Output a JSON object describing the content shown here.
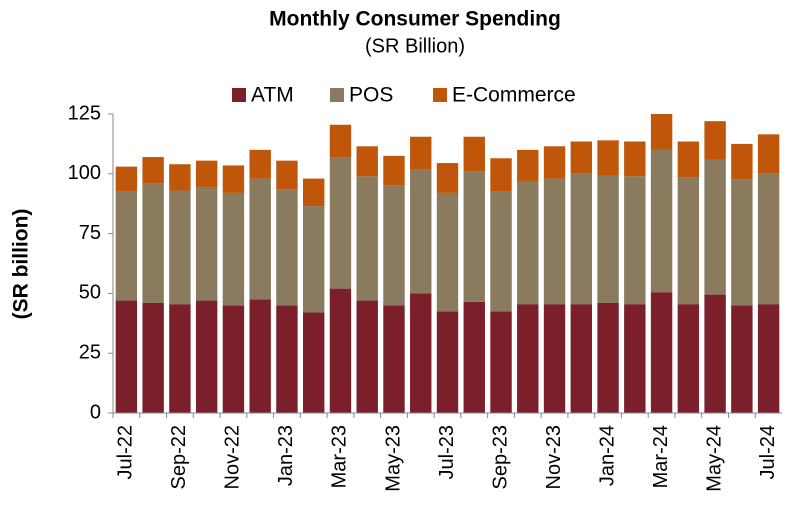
{
  "chart_data": {
    "type": "stacked_bar",
    "title": "Monthly Consumer Spending",
    "subtitle": "(SR Billion)",
    "y_label": "(SR billion)",
    "categories": [
      "Jul-22",
      null,
      "Sep-22",
      null,
      "Nov-22",
      null,
      "Jan-23",
      null,
      "Mar-23",
      null,
      "May-23",
      null,
      "Jul-23",
      null,
      "Sep-23",
      null,
      "Nov-23",
      null,
      "Jan-24",
      null,
      "Mar-24",
      null,
      "May-24",
      null,
      "Jul-24"
    ],
    "series": [
      {
        "name": "ATM",
        "color": "#7b1f2a",
        "values": [
          47,
          46,
          45.5,
          47,
          45,
          47.5,
          45,
          42,
          52,
          47,
          45,
          50,
          42.5,
          46.5,
          42.5,
          45.5,
          45.5,
          45.5,
          46,
          45.5,
          50.5,
          45.5,
          49.5,
          45,
          45.5
        ]
      },
      {
        "name": "POS",
        "color": "#8b7b5e",
        "values": [
          45.5,
          50,
          47.5,
          47.5,
          47,
          50.5,
          48.5,
          44.5,
          55,
          52,
          50,
          52,
          49.5,
          54.5,
          50,
          51.5,
          52.5,
          54.5,
          53.5,
          53.5,
          59.5,
          53,
          56.5,
          52.5,
          54.5
        ]
      },
      {
        "name": "E-Commerce",
        "color": "#c0560a",
        "values": [
          10.5,
          11,
          11,
          11,
          11.5,
          12,
          12,
          11.5,
          13.5,
          12.5,
          12.5,
          13.5,
          12.5,
          14.5,
          14,
          13,
          13.5,
          13.5,
          14.5,
          14.5,
          15,
          15,
          16,
          15,
          16.5
        ]
      }
    ],
    "ylim": [
      0,
      125
    ],
    "yticks": [
      0,
      25,
      50,
      75,
      100,
      125
    ],
    "legend": "top"
  }
}
